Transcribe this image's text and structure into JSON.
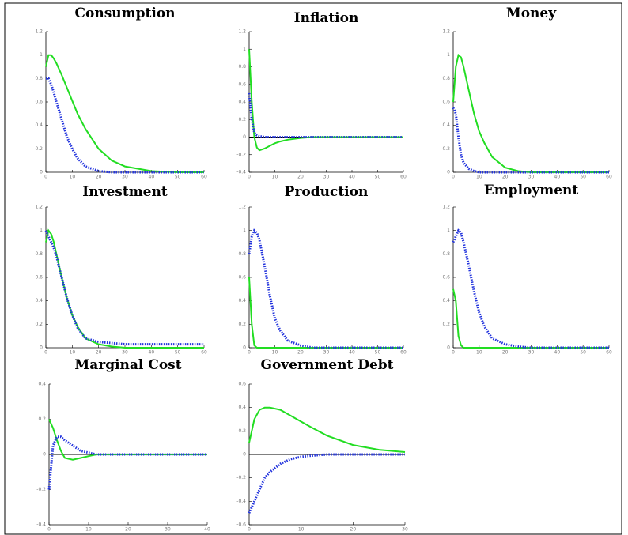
{
  "chart_data": [
    {
      "type": "line",
      "title": "Consumption",
      "x": [
        0,
        1,
        2,
        3,
        4,
        6,
        8,
        10,
        12,
        15,
        20,
        25,
        30,
        40,
        50,
        60
      ],
      "xlim": [
        0,
        60
      ],
      "xticks": [
        0,
        10,
        20,
        30,
        40,
        50,
        60
      ],
      "ylim": [
        0,
        1.2
      ],
      "yticks": [
        0,
        0.2,
        0.4,
        0.6,
        0.8,
        1,
        1.2
      ],
      "zero_line": false,
      "series": [
        {
          "color": "#22dd22",
          "style": "solid",
          "values": [
            0.9,
            1.0,
            1.0,
            0.97,
            0.93,
            0.83,
            0.72,
            0.61,
            0.5,
            0.37,
            0.2,
            0.1,
            0.05,
            0.01,
            0,
            0
          ]
        },
        {
          "color": "#2233dd",
          "style": "dotted",
          "values": [
            0.8,
            0.8,
            0.75,
            0.68,
            0.6,
            0.45,
            0.3,
            0.2,
            0.12,
            0.05,
            0.01,
            0,
            0,
            0,
            0,
            0
          ]
        }
      ]
    },
    {
      "type": "line",
      "title": "Inflation",
      "x": [
        0,
        1,
        2,
        3,
        4,
        6,
        8,
        10,
        12,
        15,
        20,
        25,
        30,
        40,
        50,
        60
      ],
      "xlim": [
        0,
        60
      ],
      "xticks": [
        0,
        10,
        20,
        30,
        40,
        50,
        60
      ],
      "ylim": [
        -0.4,
        1.2
      ],
      "yticks": [
        -0.4,
        -0.2,
        0,
        0.2,
        0.4,
        0.6,
        0.8,
        1,
        1.2
      ],
      "zero_line": true,
      "series": [
        {
          "color": "#22dd22",
          "style": "solid",
          "values": [
            1.0,
            0.4,
            0.0,
            -0.12,
            -0.15,
            -0.13,
            -0.1,
            -0.07,
            -0.05,
            -0.03,
            -0.01,
            0,
            0,
            0,
            0,
            0
          ]
        },
        {
          "color": "#2233dd",
          "style": "dotted",
          "values": [
            0.5,
            0.2,
            0.05,
            0.02,
            0.01,
            0,
            0,
            0,
            0,
            0,
            0,
            0,
            0,
            0,
            0,
            0
          ]
        }
      ]
    },
    {
      "type": "line",
      "title": "Money",
      "x": [
        0,
        1,
        2,
        3,
        4,
        6,
        8,
        10,
        12,
        15,
        20,
        25,
        30,
        40,
        50,
        60
      ],
      "xlim": [
        0,
        60
      ],
      "xticks": [
        0,
        10,
        20,
        30,
        40,
        50,
        60
      ],
      "ylim": [
        0,
        1.2
      ],
      "yticks": [
        0,
        0.2,
        0.4,
        0.6,
        0.8,
        1,
        1.2
      ],
      "zero_line": false,
      "series": [
        {
          "color": "#22dd22",
          "style": "solid",
          "values": [
            0.6,
            0.9,
            1.0,
            0.98,
            0.9,
            0.7,
            0.5,
            0.35,
            0.25,
            0.13,
            0.04,
            0.01,
            0,
            0,
            0,
            0
          ]
        },
        {
          "color": "#2233dd",
          "style": "dotted",
          "values": [
            0.55,
            0.5,
            0.3,
            0.15,
            0.08,
            0.03,
            0.01,
            0,
            0,
            0,
            0,
            0,
            0,
            0,
            0,
            0
          ]
        }
      ]
    },
    {
      "type": "line",
      "title": "Investment",
      "x": [
        0,
        1,
        2,
        3,
        4,
        6,
        8,
        10,
        12,
        15,
        20,
        25,
        30,
        40,
        50,
        60
      ],
      "xlim": [
        0,
        60
      ],
      "xticks": [
        0,
        10,
        20,
        30,
        40,
        50,
        60
      ],
      "ylim": [
        0,
        1.2
      ],
      "yticks": [
        0,
        0.2,
        0.4,
        0.6,
        0.8,
        1,
        1.2
      ],
      "zero_line": false,
      "series": [
        {
          "color": "#22dd22",
          "style": "solid",
          "values": [
            0.9,
            1.0,
            0.97,
            0.9,
            0.8,
            0.6,
            0.42,
            0.28,
            0.18,
            0.08,
            0.03,
            0.01,
            0,
            0,
            0,
            0
          ]
        },
        {
          "color": "#2233dd",
          "style": "dotted",
          "values": [
            1.0,
            0.95,
            0.9,
            0.85,
            0.78,
            0.6,
            0.42,
            0.28,
            0.17,
            0.08,
            0.05,
            0.04,
            0.03,
            0.03,
            0.03,
            0.03
          ]
        }
      ]
    },
    {
      "type": "line",
      "title": "Production",
      "x": [
        0,
        1,
        2,
        3,
        4,
        6,
        8,
        10,
        12,
        15,
        20,
        25,
        30,
        40,
        50,
        60
      ],
      "xlim": [
        0,
        60
      ],
      "xticks": [
        0,
        10,
        20,
        30,
        40,
        50,
        60
      ],
      "ylim": [
        0,
        1.2
      ],
      "yticks": [
        0,
        0.2,
        0.4,
        0.6,
        0.8,
        1,
        1.2
      ],
      "zero_line": false,
      "series": [
        {
          "color": "#22dd22",
          "style": "solid",
          "values": [
            0.6,
            0.2,
            0.02,
            0,
            0,
            0,
            0,
            0,
            0,
            0,
            0,
            0,
            0,
            0,
            0,
            0
          ]
        },
        {
          "color": "#2233dd",
          "style": "dotted",
          "values": [
            0.8,
            0.95,
            1.0,
            0.98,
            0.92,
            0.7,
            0.45,
            0.25,
            0.15,
            0.06,
            0.02,
            0,
            0,
            0,
            0,
            0
          ]
        }
      ]
    },
    {
      "type": "line",
      "title": "Employment",
      "x": [
        0,
        1,
        2,
        3,
        4,
        6,
        8,
        10,
        12,
        15,
        20,
        25,
        30,
        40,
        50,
        60
      ],
      "xlim": [
        0,
        60
      ],
      "xticks": [
        0,
        10,
        20,
        30,
        40,
        50,
        60
      ],
      "ylim": [
        0,
        1.2
      ],
      "yticks": [
        0,
        0.2,
        0.4,
        0.6,
        0.8,
        1,
        1.2
      ],
      "zero_line": false,
      "series": [
        {
          "color": "#22dd22",
          "style": "solid",
          "values": [
            0.5,
            0.4,
            0.1,
            0.02,
            0,
            0,
            0,
            0,
            0,
            0,
            0,
            0,
            0,
            0,
            0,
            0
          ]
        },
        {
          "color": "#2233dd",
          "style": "dotted",
          "values": [
            0.9,
            0.95,
            1.0,
            0.98,
            0.9,
            0.7,
            0.48,
            0.3,
            0.18,
            0.08,
            0.03,
            0.01,
            0,
            0,
            0,
            0
          ]
        }
      ]
    },
    {
      "type": "line",
      "title": "Marginal Cost",
      "x": [
        0,
        1,
        2,
        3,
        4,
        6,
        8,
        10,
        12,
        15,
        20,
        25,
        30,
        40
      ],
      "xlim": [
        0,
        40
      ],
      "xticks": [
        0,
        10,
        20,
        30,
        40
      ],
      "ylim": [
        -0.4,
        0.4
      ],
      "yticks": [
        -0.4,
        -0.2,
        0,
        0.2,
        0.4
      ],
      "zero_line": true,
      "series": [
        {
          "color": "#22dd22",
          "style": "solid",
          "values": [
            0.2,
            0.15,
            0.08,
            0.02,
            -0.02,
            -0.03,
            -0.02,
            -0.01,
            0,
            0,
            0,
            0,
            0,
            0
          ]
        },
        {
          "color": "#2233dd",
          "style": "dotted",
          "values": [
            -0.2,
            0.05,
            0.1,
            0.1,
            0.08,
            0.05,
            0.02,
            0.01,
            0,
            0,
            0,
            0,
            0,
            0
          ]
        }
      ]
    },
    {
      "type": "line",
      "title": "Government Debt",
      "x": [
        0,
        1,
        2,
        3,
        4,
        6,
        8,
        10,
        12,
        15,
        20,
        25,
        30
      ],
      "xlim": [
        0,
        30
      ],
      "xticks": [
        0,
        10,
        20,
        30
      ],
      "ylim": [
        -0.6,
        0.6
      ],
      "yticks": [
        -0.6,
        -0.4,
        -0.2,
        0,
        0.2,
        0.4,
        0.6
      ],
      "zero_line": true,
      "series": [
        {
          "color": "#22dd22",
          "style": "solid",
          "values": [
            0.1,
            0.3,
            0.38,
            0.4,
            0.4,
            0.38,
            0.33,
            0.28,
            0.23,
            0.16,
            0.08,
            0.04,
            0.02
          ]
        },
        {
          "color": "#2233dd",
          "style": "dotted",
          "values": [
            -0.5,
            -0.4,
            -0.3,
            -0.2,
            -0.15,
            -0.08,
            -0.04,
            -0.02,
            -0.01,
            0,
            0,
            0,
            0
          ]
        }
      ]
    }
  ]
}
